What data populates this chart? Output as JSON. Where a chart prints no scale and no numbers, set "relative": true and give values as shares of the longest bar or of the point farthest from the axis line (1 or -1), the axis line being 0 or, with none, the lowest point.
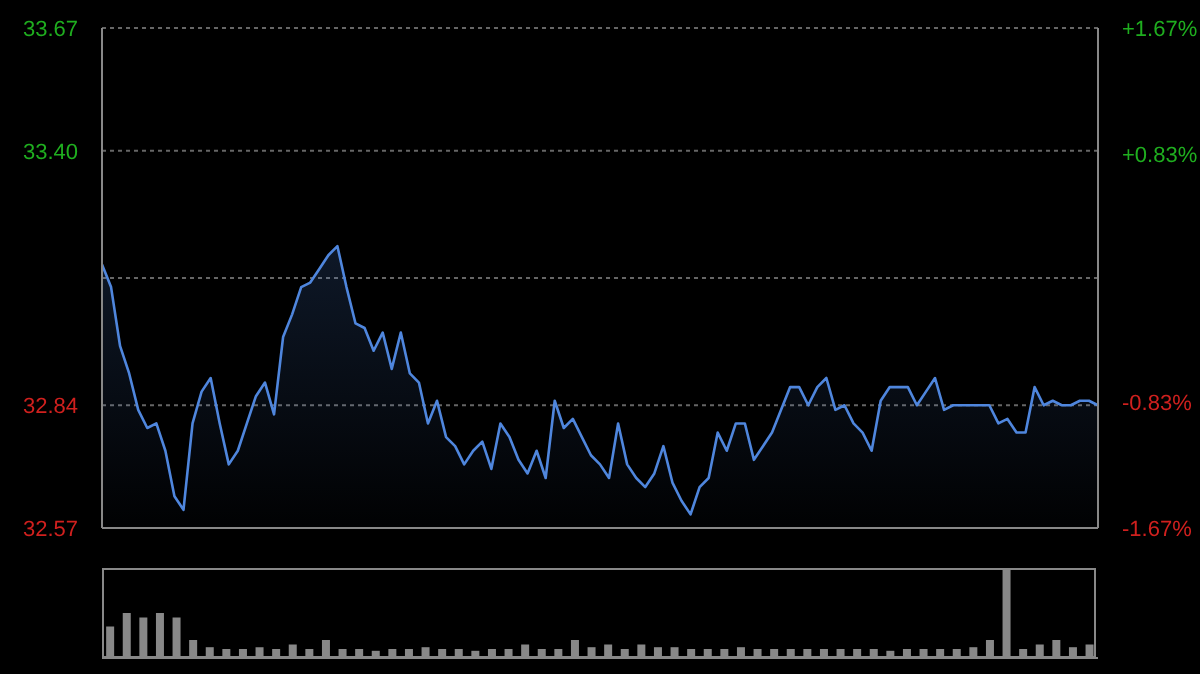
{
  "chart_data": [
    {
      "type": "area",
      "categories": [
        null,
        null,
        null,
        null,
        null,
        null,
        null,
        null,
        null,
        null,
        null,
        null,
        null,
        null,
        null,
        null,
        null,
        null,
        null,
        null,
        null,
        null,
        null,
        null,
        null,
        null,
        null,
        null,
        null,
        null,
        null,
        null,
        null,
        null,
        null,
        null,
        null,
        null,
        null,
        null,
        null,
        null,
        null,
        null,
        null,
        null,
        null,
        null,
        null,
        null,
        null,
        null,
        null,
        null,
        null,
        null,
        null,
        null,
        null,
        null,
        null,
        null,
        null,
        null,
        null,
        null,
        null,
        null,
        null,
        null,
        null,
        null,
        null,
        null,
        null,
        null,
        null,
        null,
        null,
        null,
        null,
        null,
        null,
        null,
        null,
        null,
        null,
        null,
        null,
        null,
        null,
        null,
        null,
        null,
        null,
        null,
        null,
        null,
        null,
        null,
        null,
        null,
        null,
        null,
        null,
        null,
        null,
        null,
        null,
        null,
        null
      ],
      "series": [
        {
          "color": "#4f86dd",
          "values": [
            33.15,
            33.1,
            32.97,
            32.91,
            32.83,
            32.79,
            32.8,
            32.74,
            32.64,
            32.61,
            32.8,
            32.87,
            32.9,
            32.8,
            32.71,
            32.74,
            32.8,
            32.86,
            32.89,
            32.82,
            32.99,
            33.04,
            33.1,
            33.11,
            33.14,
            33.17,
            33.19,
            33.1,
            33.02,
            33.01,
            32.96,
            33.0,
            32.92,
            33.0,
            32.91,
            32.89,
            32.8,
            32.85,
            32.77,
            32.75,
            32.71,
            32.74,
            32.76,
            32.7,
            32.8,
            32.77,
            32.72,
            32.69,
            32.74,
            32.68,
            32.85,
            32.79,
            32.81,
            32.77,
            32.73,
            32.71,
            32.68,
            32.8,
            32.71,
            32.68,
            32.66,
            32.69,
            32.75,
            32.67,
            32.63,
            32.6,
            32.66,
            32.68,
            32.78,
            32.74,
            32.8,
            32.8,
            32.72,
            32.75,
            32.78,
            32.83,
            32.88,
            32.88,
            32.84,
            32.88,
            32.9,
            32.83,
            32.84,
            32.8,
            32.78,
            32.74,
            32.85,
            32.88,
            32.88,
            32.88,
            32.84,
            32.87,
            32.9,
            32.83,
            32.84,
            32.84,
            32.84,
            32.84,
            32.84,
            32.8,
            32.81,
            32.78,
            32.78,
            32.88,
            32.84,
            32.85,
            32.84,
            32.84,
            32.85,
            32.85,
            32.84
          ]
        }
      ],
      "ylim": [
        32.57,
        33.67
      ],
      "yticks": [
        32.57,
        32.84,
        {
          "value": 33.12,
          "label": null
        },
        {
          "value": 33.4,
          "label": "33.40"
        },
        33.67
      ],
      "y2lim": [
        -1.67,
        1.67
      ],
      "y2ticks": [
        {
          "value": -1.67,
          "label": "-1.67%"
        },
        {
          "value": -0.83,
          "label": "-0.83%"
        },
        {
          "value": 0,
          "label": null
        },
        {
          "value": 0.83,
          "label": "+0.83%"
        },
        {
          "value": 1.67,
          "label": "+1.67%"
        }
      ],
      "grid": true,
      "tick_labels": "y"
    },
    {
      "type": "bar",
      "relative": true,
      "categories": [
        null,
        null,
        null,
        null,
        null,
        null,
        null,
        null,
        null,
        null,
        null,
        null,
        null,
        null,
        null,
        null,
        null,
        null,
        null,
        null,
        null,
        null,
        null,
        null,
        null,
        null,
        null,
        null,
        null,
        null,
        null,
        null,
        null,
        null,
        null,
        null,
        null,
        null,
        null,
        null,
        null,
        null,
        null,
        null,
        null,
        null,
        null,
        null,
        null,
        null,
        null,
        null,
        null,
        null,
        null,
        null,
        null,
        null,
        null,
        null
      ],
      "series": [
        {
          "color": "#888888",
          "values": [
            0.35,
            0.5,
            0.45,
            0.5,
            0.45,
            0.2,
            0.12,
            0.1,
            0.1,
            0.12,
            0.1,
            0.15,
            0.1,
            0.2,
            0.1,
            0.1,
            0.08,
            0.1,
            0.1,
            0.12,
            0.1,
            0.1,
            0.08,
            0.1,
            0.1,
            0.15,
            0.1,
            0.1,
            0.2,
            0.12,
            0.15,
            0.1,
            0.15,
            0.12,
            0.12,
            0.1,
            0.1,
            0.1,
            0.12,
            0.1,
            0.1,
            0.1,
            0.1,
            0.1,
            0.1,
            0.1,
            0.1,
            0.08,
            0.1,
            0.1,
            0.1,
            0.1,
            0.12,
            0.2,
            1,
            0.1,
            0.15,
            0.2,
            0.12,
            0.15
          ]
        }
      ]
    }
  ]
}
